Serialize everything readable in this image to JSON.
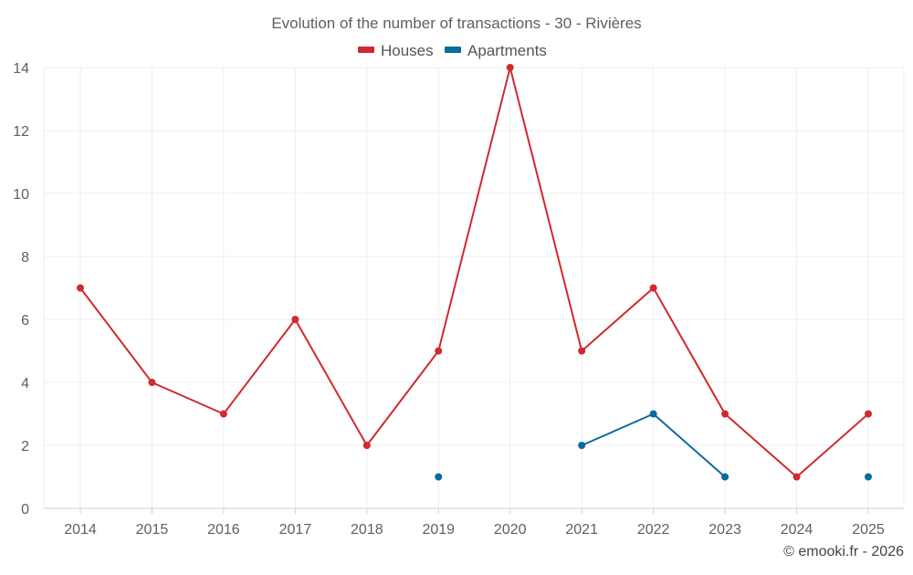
{
  "chart_data": {
    "type": "line",
    "title": "Evolution of the number of transactions - 30 - Rivières",
    "categories": [
      "2014",
      "2015",
      "2016",
      "2017",
      "2018",
      "2019",
      "2020",
      "2021",
      "2022",
      "2023",
      "2024",
      "2025"
    ],
    "series": [
      {
        "name": "Houses",
        "color": "#d1292f",
        "values": [
          7,
          4,
          3,
          6,
          2,
          5,
          14,
          5,
          7,
          3,
          1,
          3
        ]
      },
      {
        "name": "Apartments",
        "color": "#0b6a9e",
        "values": [
          null,
          null,
          null,
          null,
          null,
          1,
          null,
          2,
          3,
          1,
          null,
          1
        ]
      }
    ],
    "ylim": [
      0,
      14
    ],
    "yticks": [
      "0",
      "2",
      "4",
      "6",
      "8",
      "10",
      "12",
      "14"
    ],
    "grid": true,
    "legend": "top-center",
    "xlabel": "",
    "ylabel": ""
  },
  "credit": "© emooki.fr - 2026",
  "colors": {
    "grid": "#eeeeee",
    "axis": "#d0d0d0"
  }
}
